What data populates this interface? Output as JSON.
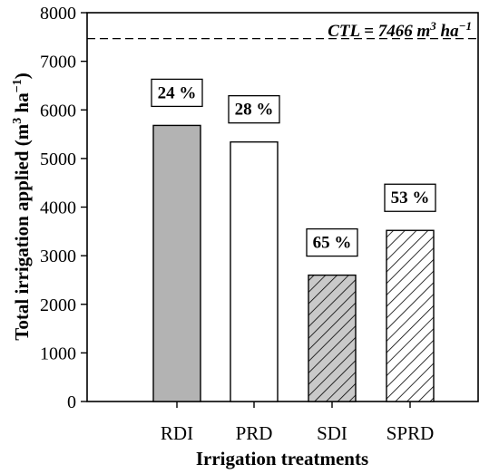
{
  "chart_data": {
    "type": "bar",
    "categories": [
      "RDI",
      "PRD",
      "SDI",
      "SPRD"
    ],
    "values": [
      5680,
      5340,
      2600,
      3520
    ],
    "bar_labels": [
      "24 %",
      "28 %",
      "65 %",
      "53 %"
    ],
    "bar_styles": [
      "solid-gray",
      "white",
      "hatch-gray",
      "hatch-white"
    ],
    "xlabel": "Irrigation treatments",
    "ylabel": {
      "main": "Total irrigation applied (m",
      "sup1": "3",
      "mid": " ha",
      "sup2": "−1",
      "end": ")"
    },
    "ylim": [
      0,
      8000
    ],
    "yticks": [
      0,
      1000,
      2000,
      3000,
      4000,
      5000,
      6000,
      7000,
      8000
    ],
    "reference_line": {
      "value": 7466,
      "style": "dashed",
      "label": {
        "prefix": "CTL = 7466 m",
        "sup1": "3",
        "mid": " ha",
        "sup2": "−1"
      }
    },
    "colors": {
      "solid_gray": "#b3b3b3",
      "hatch_gray": "#c9c9c9"
    },
    "grid": false,
    "legend": "none"
  }
}
